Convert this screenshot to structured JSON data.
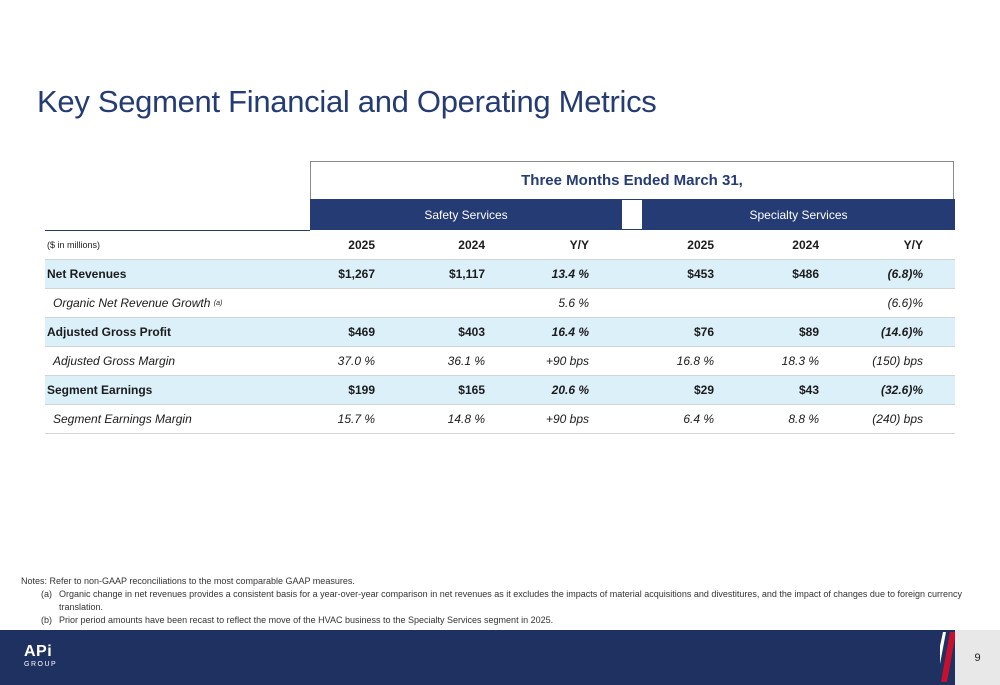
{
  "title": "Key Segment Financial and Operating Metrics",
  "period_header": "Three Months Ended March 31,",
  "segments": [
    "Safety Services",
    "Specialty Services"
  ],
  "units_label": "($ in millions)",
  "col_headers": [
    "2025",
    "2024",
    "Y/Y",
    "2025",
    "2024",
    "Y/Y"
  ],
  "rows": [
    {
      "label": "Net Revenues",
      "sup": "",
      "values": [
        "$1,267",
        "$1,117",
        "13.4 %",
        "$453",
        "$486",
        "(6.8)%"
      ]
    },
    {
      "label": "Organic Net Revenue Growth",
      "sup": "(a)",
      "values": [
        "",
        "",
        "5.6 %",
        "",
        "",
        "(6.6)%"
      ]
    },
    {
      "label": "Adjusted Gross Profit",
      "sup": "",
      "values": [
        "$469",
        "$403",
        "16.4 %",
        "$76",
        "$89",
        "(14.6)%"
      ]
    },
    {
      "label": "Adjusted Gross Margin",
      "sup": "",
      "values": [
        "37.0 %",
        "36.1 %",
        "+90 bps",
        "16.8 %",
        "18.3 %",
        "(150) bps"
      ]
    },
    {
      "label": "Segment Earnings",
      "sup": "",
      "values": [
        "$199",
        "$165",
        "20.6 %",
        "$29",
        "$43",
        "(32.6)%"
      ]
    },
    {
      "label": "Segment Earnings Margin",
      "sup": "",
      "values": [
        "15.7 %",
        "14.8 %",
        "+90 bps",
        "6.4 %",
        "8.8 %",
        "(240) bps"
      ]
    }
  ],
  "notes": {
    "intro": "Notes: Refer to non-GAAP reconciliations to the most comparable GAAP measures.",
    "items": [
      {
        "mark": "(a)",
        "text": "Organic change in net revenues provides a consistent basis for a year-over-year comparison in net revenues as it excludes the impacts of material acquisitions and divestitures, and the impact of changes due to foreign currency translation."
      },
      {
        "mark": "(b)",
        "text": "Prior period amounts have been recast to reflect the move of the HVAC business to the Specialty Services segment in 2025."
      }
    ]
  },
  "footer": {
    "logo_main": "APi",
    "logo_sub": "GROUP",
    "page_number": "9"
  },
  "colors": {
    "navy": "#243b73",
    "footer": "#1f3160",
    "row_shade": "#dcf0fa",
    "accent_red": "#c8102e"
  }
}
